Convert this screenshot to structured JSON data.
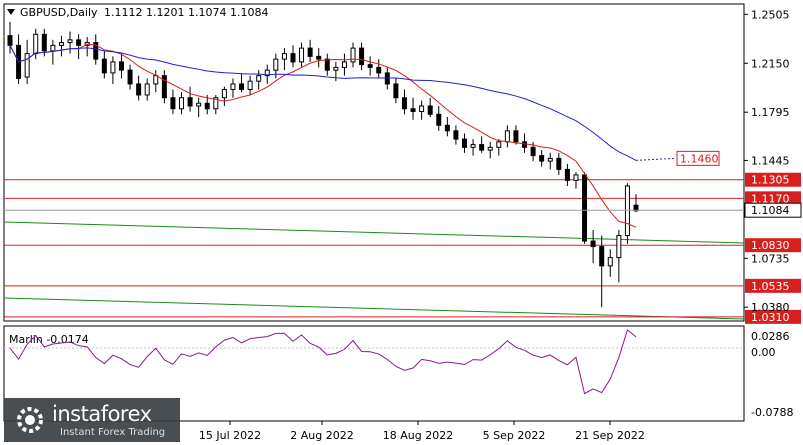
{
  "header": {
    "symbol_label": "GBPUSD,Daily",
    "ohlc": "1.1112 1.1201 1.1074 1.1084"
  },
  "indicator": {
    "label": "Marlin -0.0174"
  },
  "watermark": {
    "brand": "instaforex",
    "sub": "Instant Forex Trading"
  },
  "colors": {
    "background": "#ffffff",
    "candle": "#000000",
    "ma_blue": "#1f1fd6",
    "ma_red": "#d61f1f",
    "level_line": "#d62020",
    "green_line": "#1a8a1a",
    "oscillator": "#8b1a8b"
  },
  "chart_data": {
    "type": "candlestick",
    "y_ticks": [
      "1.2505",
      "1.2150",
      "1.1795",
      "1.1445",
      "1.1084",
      "1.0735",
      "1.0380"
    ],
    "x_ticks": [
      "15 Jul 2022",
      "2 Aug 2022",
      "18 Aug 2022",
      "5 Sep 2022",
      "21 Sep 2022"
    ],
    "ylim": [
      1.028,
      1.258
    ],
    "levels": [
      {
        "label": "1.1305",
        "value": 1.1305
      },
      {
        "label": "1.1170",
        "value": 1.117
      },
      {
        "label": "1.0830",
        "value": 1.083
      },
      {
        "label": "1.0535",
        "value": 1.0535
      },
      {
        "label": "1.0310",
        "value": 1.031
      }
    ],
    "current_price": {
      "label": "1.1084",
      "value": 1.1084
    },
    "ma_blue_label": {
      "label": "1.1460",
      "value": 1.146
    },
    "candles": [
      [
        1.235,
        1.245,
        1.222,
        1.228
      ],
      [
        1.228,
        1.236,
        1.2,
        1.204
      ],
      [
        1.205,
        1.232,
        1.2,
        1.222
      ],
      [
        1.222,
        1.24,
        1.218,
        1.236
      ],
      [
        1.236,
        1.24,
        1.22,
        1.224
      ],
      [
        1.224,
        1.232,
        1.214,
        1.228
      ],
      [
        1.228,
        1.235,
        1.22,
        1.23
      ],
      [
        1.23,
        1.238,
        1.222,
        1.232
      ],
      [
        1.232,
        1.236,
        1.218,
        1.228
      ],
      [
        1.228,
        1.234,
        1.22,
        1.23
      ],
      [
        1.23,
        1.236,
        1.214,
        1.218
      ],
      [
        1.218,
        1.224,
        1.204,
        1.208
      ],
      [
        1.208,
        1.22,
        1.2,
        1.216
      ],
      [
        1.216,
        1.222,
        1.204,
        1.21
      ],
      [
        1.21,
        1.214,
        1.196,
        1.2
      ],
      [
        1.2,
        1.206,
        1.188,
        1.192
      ],
      [
        1.192,
        1.204,
        1.188,
        1.2
      ],
      [
        1.2,
        1.21,
        1.194,
        1.206
      ],
      [
        1.206,
        1.21,
        1.186,
        1.19
      ],
      [
        1.19,
        1.196,
        1.178,
        1.182
      ],
      [
        1.182,
        1.194,
        1.178,
        1.19
      ],
      [
        1.19,
        1.198,
        1.18,
        1.184
      ],
      [
        1.184,
        1.19,
        1.176,
        1.186
      ],
      [
        1.186,
        1.192,
        1.178,
        1.182
      ],
      [
        1.182,
        1.192,
        1.178,
        1.19
      ],
      [
        1.19,
        1.198,
        1.184,
        1.196
      ],
      [
        1.196,
        1.204,
        1.19,
        1.2
      ],
      [
        1.2,
        1.208,
        1.194,
        1.196
      ],
      [
        1.196,
        1.206,
        1.192,
        1.202
      ],
      [
        1.202,
        1.21,
        1.196,
        1.206
      ],
      [
        1.206,
        1.214,
        1.2,
        1.21
      ],
      [
        1.21,
        1.222,
        1.204,
        1.218
      ],
      [
        1.218,
        1.226,
        1.21,
        1.222
      ],
      [
        1.222,
        1.228,
        1.212,
        1.216
      ],
      [
        1.216,
        1.23,
        1.212,
        1.226
      ],
      [
        1.226,
        1.232,
        1.216,
        1.22
      ],
      [
        1.22,
        1.226,
        1.212,
        1.218
      ],
      [
        1.218,
        1.222,
        1.206,
        1.21
      ],
      [
        1.21,
        1.216,
        1.202,
        1.212
      ],
      [
        1.212,
        1.222,
        1.206,
        1.216
      ],
      [
        1.216,
        1.23,
        1.212,
        1.226
      ],
      [
        1.226,
        1.23,
        1.21,
        1.214
      ],
      [
        1.214,
        1.22,
        1.206,
        1.212
      ],
      [
        1.212,
        1.218,
        1.204,
        1.208
      ],
      [
        1.208,
        1.212,
        1.196,
        1.2
      ],
      [
        1.2,
        1.204,
        1.186,
        1.19
      ],
      [
        1.19,
        1.196,
        1.178,
        1.182
      ],
      [
        1.182,
        1.19,
        1.174,
        1.18
      ],
      [
        1.18,
        1.188,
        1.174,
        1.184
      ],
      [
        1.184,
        1.19,
        1.176,
        1.178
      ],
      [
        1.178,
        1.184,
        1.166,
        1.17
      ],
      [
        1.17,
        1.176,
        1.162,
        1.166
      ],
      [
        1.166,
        1.17,
        1.156,
        1.16
      ],
      [
        1.16,
        1.164,
        1.15,
        1.154
      ],
      [
        1.154,
        1.16,
        1.148,
        1.156
      ],
      [
        1.156,
        1.162,
        1.15,
        1.152
      ],
      [
        1.152,
        1.158,
        1.146,
        1.154
      ],
      [
        1.154,
        1.16,
        1.148,
        1.158
      ],
      [
        1.158,
        1.17,
        1.154,
        1.166
      ],
      [
        1.166,
        1.17,
        1.156,
        1.158
      ],
      [
        1.158,
        1.164,
        1.15,
        1.154
      ],
      [
        1.154,
        1.158,
        1.144,
        1.148
      ],
      [
        1.148,
        1.152,
        1.14,
        1.144
      ],
      [
        1.144,
        1.15,
        1.138,
        1.146
      ],
      [
        1.146,
        1.15,
        1.134,
        1.138
      ],
      [
        1.138,
        1.142,
        1.126,
        1.13
      ],
      [
        1.13,
        1.136,
        1.124,
        1.134
      ],
      [
        1.134,
        1.136,
        1.084,
        1.086
      ],
      [
        1.086,
        1.094,
        1.07,
        1.082
      ],
      [
        1.082,
        1.09,
        1.038,
        1.068
      ],
      [
        1.068,
        1.08,
        1.06,
        1.074
      ],
      [
        1.074,
        1.094,
        1.056,
        1.09
      ],
      [
        1.09,
        1.128,
        1.084,
        1.126
      ],
      [
        1.112,
        1.12,
        1.107,
        1.108
      ]
    ]
  }
}
